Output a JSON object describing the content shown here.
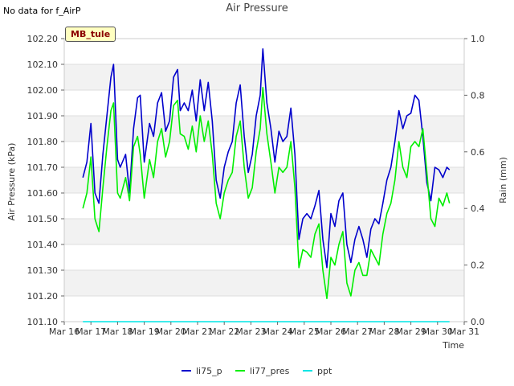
{
  "header": {
    "no_data_note": "No data for f_AirP",
    "site_badge": "MB_tule"
  },
  "chart_data": {
    "type": "line",
    "title": "Air Pressure",
    "xlabel": "Time",
    "ylabel": "Air Pressure (kPa)",
    "y2label": "Rain (mm)",
    "ylim": [
      101.1,
      102.2
    ],
    "y2lim": [
      0.0,
      1.0
    ],
    "x_range_days": [
      16,
      31
    ],
    "x_ticks": [
      "Mar 16",
      "Mar 17",
      "Mar 18",
      "Mar 19",
      "Mar 20",
      "Mar 21",
      "Mar 22",
      "Mar 23",
      "Mar 24",
      "Mar 25",
      "Mar 26",
      "Mar 27",
      "Mar 28",
      "Mar 29",
      "Mar 30",
      "Mar 31"
    ],
    "y_ticks": [
      "101.10",
      "101.20",
      "101.30",
      "101.40",
      "101.50",
      "101.60",
      "101.70",
      "101.80",
      "101.90",
      "102.00",
      "102.10",
      "102.20"
    ],
    "y2_ticks": [
      "0.0",
      "0.2",
      "0.4",
      "0.6",
      "0.8",
      "1.0"
    ],
    "legend_position": "bottom",
    "series": [
      {
        "name": "li75_p",
        "color": "#0000cc",
        "axis": "left",
        "x": [
          16.7,
          16.85,
          17.0,
          17.15,
          17.3,
          17.45,
          17.6,
          17.75,
          17.85,
          18.0,
          18.1,
          18.3,
          18.45,
          18.6,
          18.75,
          18.85,
          19.0,
          19.2,
          19.35,
          19.5,
          19.65,
          19.8,
          19.95,
          20.1,
          20.25,
          20.35,
          20.5,
          20.65,
          20.8,
          20.95,
          21.1,
          21.25,
          21.4,
          21.55,
          21.7,
          21.85,
          22.0,
          22.15,
          22.3,
          22.45,
          22.6,
          22.75,
          22.9,
          23.05,
          23.2,
          23.35,
          23.45,
          23.6,
          23.75,
          23.9,
          24.05,
          24.2,
          24.35,
          24.5,
          24.65,
          24.8,
          24.95,
          25.1,
          25.25,
          25.4,
          25.55,
          25.7,
          25.85,
          26.0,
          26.15,
          26.3,
          26.45,
          26.6,
          26.75,
          26.9,
          27.05,
          27.2,
          27.35,
          27.5,
          27.65,
          27.8,
          27.95,
          28.1,
          28.25,
          28.4,
          28.55,
          28.7,
          28.85,
          29.0,
          29.15,
          29.3,
          29.45,
          29.6,
          29.75,
          29.9,
          30.05,
          30.2,
          30.35,
          30.45
        ],
        "values": [
          101.66,
          101.72,
          101.87,
          101.6,
          101.56,
          101.75,
          101.9,
          102.05,
          102.1,
          101.73,
          101.7,
          101.75,
          101.6,
          101.85,
          101.97,
          101.98,
          101.72,
          101.87,
          101.82,
          101.95,
          101.99,
          101.84,
          101.88,
          102.05,
          102.08,
          101.92,
          101.95,
          101.92,
          102.0,
          101.88,
          102.04,
          101.92,
          102.03,
          101.88,
          101.65,
          101.58,
          101.7,
          101.76,
          101.8,
          101.95,
          102.02,
          101.82,
          101.68,
          101.75,
          101.9,
          101.98,
          102.16,
          101.95,
          101.85,
          101.72,
          101.84,
          101.8,
          101.82,
          101.93,
          101.75,
          101.42,
          101.5,
          101.52,
          101.5,
          101.55,
          101.61,
          101.42,
          101.31,
          101.52,
          101.47,
          101.57,
          101.6,
          101.4,
          101.33,
          101.42,
          101.47,
          101.42,
          101.35,
          101.46,
          101.5,
          101.48,
          101.56,
          101.65,
          101.7,
          101.8,
          101.92,
          101.85,
          101.9,
          101.91,
          101.98,
          101.96,
          101.82,
          101.64,
          101.57,
          101.7,
          101.69,
          101.66,
          101.7,
          101.69
        ]
      },
      {
        "name": "li77_pres",
        "color": "#00ee00",
        "axis": "left",
        "x": [
          16.7,
          16.85,
          17.0,
          17.15,
          17.3,
          17.45,
          17.6,
          17.75,
          17.85,
          18.0,
          18.1,
          18.3,
          18.45,
          18.6,
          18.75,
          18.85,
          19.0,
          19.2,
          19.35,
          19.5,
          19.65,
          19.8,
          19.95,
          20.1,
          20.25,
          20.35,
          20.5,
          20.65,
          20.8,
          20.95,
          21.1,
          21.25,
          21.4,
          21.55,
          21.7,
          21.85,
          22.0,
          22.15,
          22.3,
          22.45,
          22.6,
          22.75,
          22.9,
          23.05,
          23.2,
          23.35,
          23.45,
          23.6,
          23.75,
          23.9,
          24.05,
          24.2,
          24.35,
          24.5,
          24.65,
          24.8,
          24.95,
          25.1,
          25.25,
          25.4,
          25.55,
          25.7,
          25.85,
          26.0,
          26.15,
          26.3,
          26.45,
          26.6,
          26.75,
          26.9,
          27.05,
          27.2,
          27.35,
          27.5,
          27.65,
          27.8,
          27.95,
          28.1,
          28.25,
          28.4,
          28.55,
          28.7,
          28.85,
          29.0,
          29.15,
          29.3,
          29.45,
          29.6,
          29.75,
          29.9,
          30.05,
          30.2,
          30.35,
          30.45
        ],
        "values": [
          101.54,
          101.6,
          101.74,
          101.5,
          101.45,
          101.62,
          101.78,
          101.92,
          101.95,
          101.6,
          101.58,
          101.66,
          101.57,
          101.78,
          101.82,
          101.75,
          101.58,
          101.73,
          101.66,
          101.8,
          101.85,
          101.74,
          101.8,
          101.94,
          101.96,
          101.83,
          101.82,
          101.77,
          101.86,
          101.76,
          101.9,
          101.8,
          101.88,
          101.75,
          101.56,
          101.5,
          101.6,
          101.65,
          101.68,
          101.82,
          101.88,
          101.7,
          101.58,
          101.62,
          101.76,
          101.85,
          102.01,
          101.83,
          101.72,
          101.6,
          101.7,
          101.68,
          101.7,
          101.8,
          101.62,
          101.31,
          101.38,
          101.37,
          101.35,
          101.44,
          101.48,
          101.3,
          101.19,
          101.35,
          101.32,
          101.4,
          101.45,
          101.25,
          101.2,
          101.3,
          101.33,
          101.28,
          101.28,
          101.38,
          101.35,
          101.32,
          101.44,
          101.52,
          101.56,
          101.65,
          101.8,
          101.7,
          101.66,
          101.78,
          101.8,
          101.78,
          101.85,
          101.68,
          101.5,
          101.47,
          101.58,
          101.55,
          101.6,
          101.56
        ]
      },
      {
        "name": "ppt",
        "color": "#00e5e5",
        "axis": "right",
        "x": [
          16.7,
          30.45
        ],
        "values": [
          0.0,
          0.0
        ]
      }
    ]
  }
}
